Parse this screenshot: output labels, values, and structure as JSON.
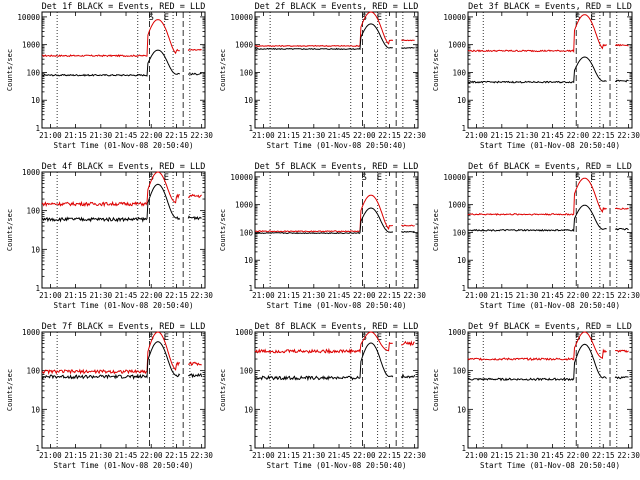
{
  "panels": [
    {
      "title": "Det 1f BLACK = Events, RED = LLD"
    },
    {
      "title": "Det 2f BLACK = Events, RED = LLD"
    },
    {
      "title": "Det 3f BLACK = Events, RED = LLD"
    },
    {
      "title": "Det 4f BLACK = Events, RED = LLD"
    },
    {
      "title": "Det 5f BLACK = Events, RED = LLD"
    },
    {
      "title": "Det 6f BLACK = Events, RED = LLD"
    },
    {
      "title": "Det 7f BLACK = Events, RED = LLD"
    },
    {
      "title": "Det 8f BLACK = Events, RED = LLD"
    },
    {
      "title": "Det 9f BLACK = Events, RED = LLD"
    }
  ],
  "colors": {
    "events": "#000000",
    "lld": "#dd0000",
    "axes": "#000000",
    "background": "#ffffff"
  },
  "chart_data": [
    {
      "type": "line",
      "title": "Det 1f BLACK = Events, RED = LLD",
      "xlabel": "Start Time (01-Nov-08 20:50:40)",
      "ylabel": "Counts/sec",
      "y_scale": "log",
      "ylim": [
        1,
        15000
      ],
      "xlim": [
        "20:55",
        "22:32"
      ],
      "x_ticks": [
        "21:00",
        "21:15",
        "21:30",
        "21:45",
        "22:00",
        "22:15",
        "22:30"
      ],
      "y_ticks": [
        "1",
        "10",
        "100",
        "1000",
        "10000"
      ],
      "markers": [
        "S",
        "E"
      ],
      "event_level": 80,
      "lld_level": 400,
      "spike": true,
      "noise": 0.03
    },
    {
      "type": "line",
      "title": "Det 2f BLACK = Events, RED = LLD",
      "xlabel": "Start Time (01-Nov-08 20:50:40)",
      "ylabel": "Counts/sec",
      "y_scale": "log",
      "ylim": [
        1,
        15000
      ],
      "xlim": [
        "20:55",
        "22:32"
      ],
      "x_ticks": [
        "21:00",
        "21:15",
        "21:30",
        "21:45",
        "22:00",
        "22:15",
        "22:30"
      ],
      "y_ticks": [
        "1",
        "10",
        "100",
        "1000",
        "10000"
      ],
      "markers": [
        "S",
        "E"
      ],
      "event_level": 700,
      "lld_level": 900,
      "spike": true,
      "noise": 0.02
    },
    {
      "type": "line",
      "title": "Det 3f BLACK = Events, RED = LLD",
      "xlabel": "Start Time (01-Nov-08 20:50:40)",
      "ylabel": "Counts/sec",
      "y_scale": "log",
      "ylim": [
        1,
        15000
      ],
      "xlim": [
        "20:55",
        "22:32"
      ],
      "x_ticks": [
        "21:00",
        "21:15",
        "21:30",
        "21:45",
        "22:00",
        "22:15",
        "22:30"
      ],
      "y_ticks": [
        "1",
        "10",
        "100",
        "1000",
        "10000"
      ],
      "markers": [
        "S",
        "E"
      ],
      "event_level": 45,
      "lld_level": 600,
      "spike": false,
      "noise": 0.03
    },
    {
      "type": "line",
      "title": "Det 4f BLACK = Events, RED = LLD",
      "xlabel": "Start Time (01-Nov-08 20:50:40)",
      "ylabel": "Counts/sec",
      "y_scale": "log",
      "ylim": [
        1,
        1000
      ],
      "xlim": [
        "20:55",
        "22:32"
      ],
      "x_ticks": [
        "21:00",
        "21:15",
        "21:30",
        "21:45",
        "22:00",
        "22:15",
        "22:30"
      ],
      "y_ticks": [
        "1",
        "10",
        "100",
        "1000"
      ],
      "markers": [
        "S",
        "E"
      ],
      "event_level": 60,
      "lld_level": 150,
      "spike": false,
      "noise": 0.05
    },
    {
      "type": "line",
      "title": "Det 5f BLACK = Events, RED = LLD",
      "xlabel": "Start Time (01-Nov-08 20:50:40)",
      "ylabel": "Counts/sec",
      "y_scale": "log",
      "ylim": [
        1,
        15000
      ],
      "xlim": [
        "20:55",
        "22:32"
      ],
      "x_ticks": [
        "21:00",
        "21:15",
        "21:30",
        "21:45",
        "22:00",
        "22:15",
        "22:30"
      ],
      "y_ticks": [
        "1",
        "10",
        "100",
        "1000",
        "10000"
      ],
      "markers": [
        "S",
        "E"
      ],
      "event_level": 95,
      "lld_level": 110,
      "spike": true,
      "noise": 0.02
    },
    {
      "type": "line",
      "title": "Det 6f BLACK = Events, RED = LLD",
      "xlabel": "Start Time (01-Nov-08 20:50:40)",
      "ylabel": "Counts/sec",
      "y_scale": "log",
      "ylim": [
        1,
        15000
      ],
      "xlim": [
        "20:55",
        "22:32"
      ],
      "x_ticks": [
        "21:00",
        "21:15",
        "21:30",
        "21:45",
        "22:00",
        "22:15",
        "22:30"
      ],
      "y_ticks": [
        "1",
        "10",
        "100",
        "1000",
        "10000"
      ],
      "markers": [
        "S",
        "E"
      ],
      "event_level": 120,
      "lld_level": 450,
      "spike": false,
      "noise": 0.03
    },
    {
      "type": "line",
      "title": "Det 7f BLACK = Events, RED = LLD",
      "xlabel": "Start Time (01-Nov-08 20:50:40)",
      "ylabel": "Counts/sec",
      "y_scale": "log",
      "ylim": [
        1,
        1000
      ],
      "xlim": [
        "20:55",
        "22:32"
      ],
      "x_ticks": [
        "21:00",
        "21:15",
        "21:30",
        "21:45",
        "22:00",
        "22:15",
        "22:30"
      ],
      "y_ticks": [
        "1",
        "10",
        "100",
        "1000"
      ],
      "markers": [
        "S",
        "E"
      ],
      "event_level": 70,
      "lld_level": 95,
      "spike": false,
      "noise": 0.05
    },
    {
      "type": "line",
      "title": "Det 8f BLACK = Events, RED = LLD",
      "xlabel": "Start Time (01-Nov-08 20:50:40)",
      "ylabel": "Counts/sec",
      "y_scale": "log",
      "ylim": [
        1,
        1000
      ],
      "xlim": [
        "20:55",
        "22:32"
      ],
      "x_ticks": [
        "21:00",
        "21:15",
        "21:30",
        "21:45",
        "22:00",
        "22:15",
        "22:30"
      ],
      "y_ticks": [
        "1",
        "10",
        "100",
        "1000"
      ],
      "markers": [
        "S",
        "E"
      ],
      "event_level": 65,
      "lld_level": 320,
      "spike": false,
      "noise": 0.05
    },
    {
      "type": "line",
      "title": "Det 9f BLACK = Events, RED = LLD",
      "xlabel": "Start Time (01-Nov-08 20:50:40)",
      "ylabel": "Counts/sec",
      "y_scale": "log",
      "ylim": [
        1,
        1000
      ],
      "xlim": [
        "20:55",
        "22:32"
      ],
      "x_ticks": [
        "21:00",
        "21:15",
        "21:30",
        "21:45",
        "22:00",
        "22:15",
        "22:30"
      ],
      "y_ticks": [
        "1",
        "10",
        "100",
        "1000"
      ],
      "markers": [
        "S",
        "E"
      ],
      "event_level": 60,
      "lld_level": 200,
      "spike": false,
      "noise": 0.03
    }
  ]
}
